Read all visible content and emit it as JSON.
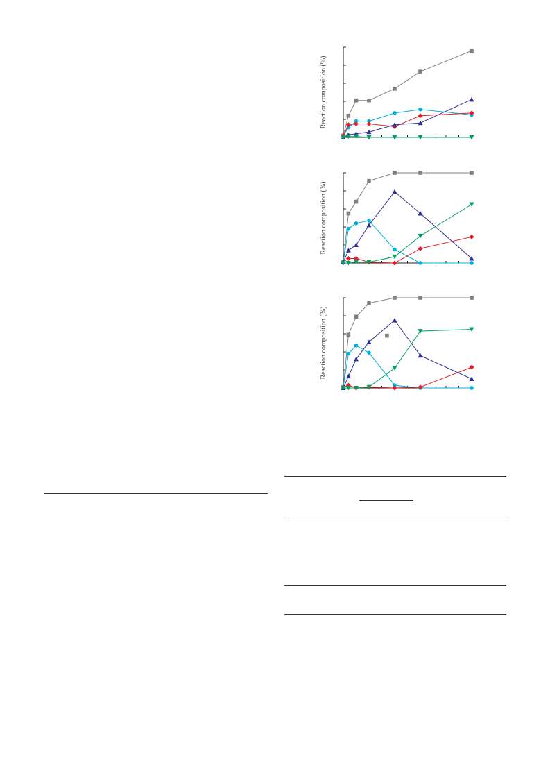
{
  "chart_data": [
    {
      "type": "line",
      "ylabel": "Reaction composition (%)",
      "x": [
        0,
        2,
        5,
        10,
        20,
        30,
        50
      ],
      "xlim": [
        0,
        50
      ],
      "ylim": [
        0,
        100
      ],
      "grid": false,
      "series": [
        {
          "color": "#808080",
          "marker": "square",
          "values": [
            2,
            24,
            41,
            41,
            54,
            73,
            96
          ]
        },
        {
          "color": "#00b0e0",
          "marker": "circle",
          "values": [
            2,
            11,
            18,
            18,
            27,
            31,
            25
          ]
        },
        {
          "color": "#e01c24",
          "marker": "diamond",
          "values": [
            2,
            14,
            15,
            15,
            12,
            24,
            27
          ]
        },
        {
          "color": "#2e3192",
          "marker": "triangle-up",
          "values": [
            0,
            3,
            4,
            6,
            14,
            16,
            42
          ]
        },
        {
          "color": "#00a060",
          "marker": "triangle-down",
          "values": [
            0,
            1,
            1,
            0,
            0,
            0,
            0
          ]
        }
      ]
    },
    {
      "type": "line",
      "ylabel": "Reaction composition (%)",
      "x": [
        0,
        2,
        5,
        10,
        20,
        30,
        50
      ],
      "xlim": [
        0,
        50
      ],
      "ylim": [
        0,
        100
      ],
      "grid": false,
      "series": [
        {
          "color": "#808080",
          "marker": "square",
          "values": [
            1,
            55,
            68,
            91,
            100,
            100,
            100
          ]
        },
        {
          "color": "#00b0e0",
          "marker": "circle",
          "values": [
            1,
            38,
            44,
            47,
            15,
            0,
            0
          ]
        },
        {
          "color": "#e01c24",
          "marker": "diamond",
          "values": [
            1,
            5,
            5,
            1,
            0,
            16,
            29
          ]
        },
        {
          "color": "#2e3192",
          "marker": "triangle-up",
          "values": [
            1,
            14,
            20,
            42,
            79,
            55,
            5
          ]
        },
        {
          "color": "#00a060",
          "marker": "triangle-down",
          "values": [
            0,
            0,
            1,
            1,
            7,
            30,
            65
          ]
        }
      ]
    },
    {
      "type": "line",
      "ylabel": "Reaction composition (%)",
      "x": [
        0,
        2,
        5,
        10,
        20,
        30,
        50
      ],
      "xlim": [
        0,
        50
      ],
      "ylim": [
        0,
        100
      ],
      "grid": false,
      "series": [
        {
          "color": "#808080",
          "marker": "square",
          "values": [
            1,
            59,
            79,
            94,
            100,
            100,
            100
          ]
        },
        {
          "color": "#00b0e0",
          "marker": "circle",
          "values": [
            1,
            38,
            47,
            39,
            3,
            0,
            0
          ]
        },
        {
          "color": "#e01c24",
          "marker": "diamond",
          "values": [
            1,
            3,
            0,
            1,
            0,
            1,
            23
          ]
        },
        {
          "color": "#2e3192",
          "marker": "triangle-up",
          "values": [
            0,
            13,
            32,
            51,
            75,
            36,
            10
          ]
        },
        {
          "color": "#00a060",
          "marker": "triangle-down",
          "values": [
            0,
            0,
            0,
            1,
            22,
            63,
            65
          ]
        }
      ],
      "stray_point": {
        "x": 17,
        "y": 58,
        "color": "#808080",
        "marker": "square"
      }
    }
  ]
}
